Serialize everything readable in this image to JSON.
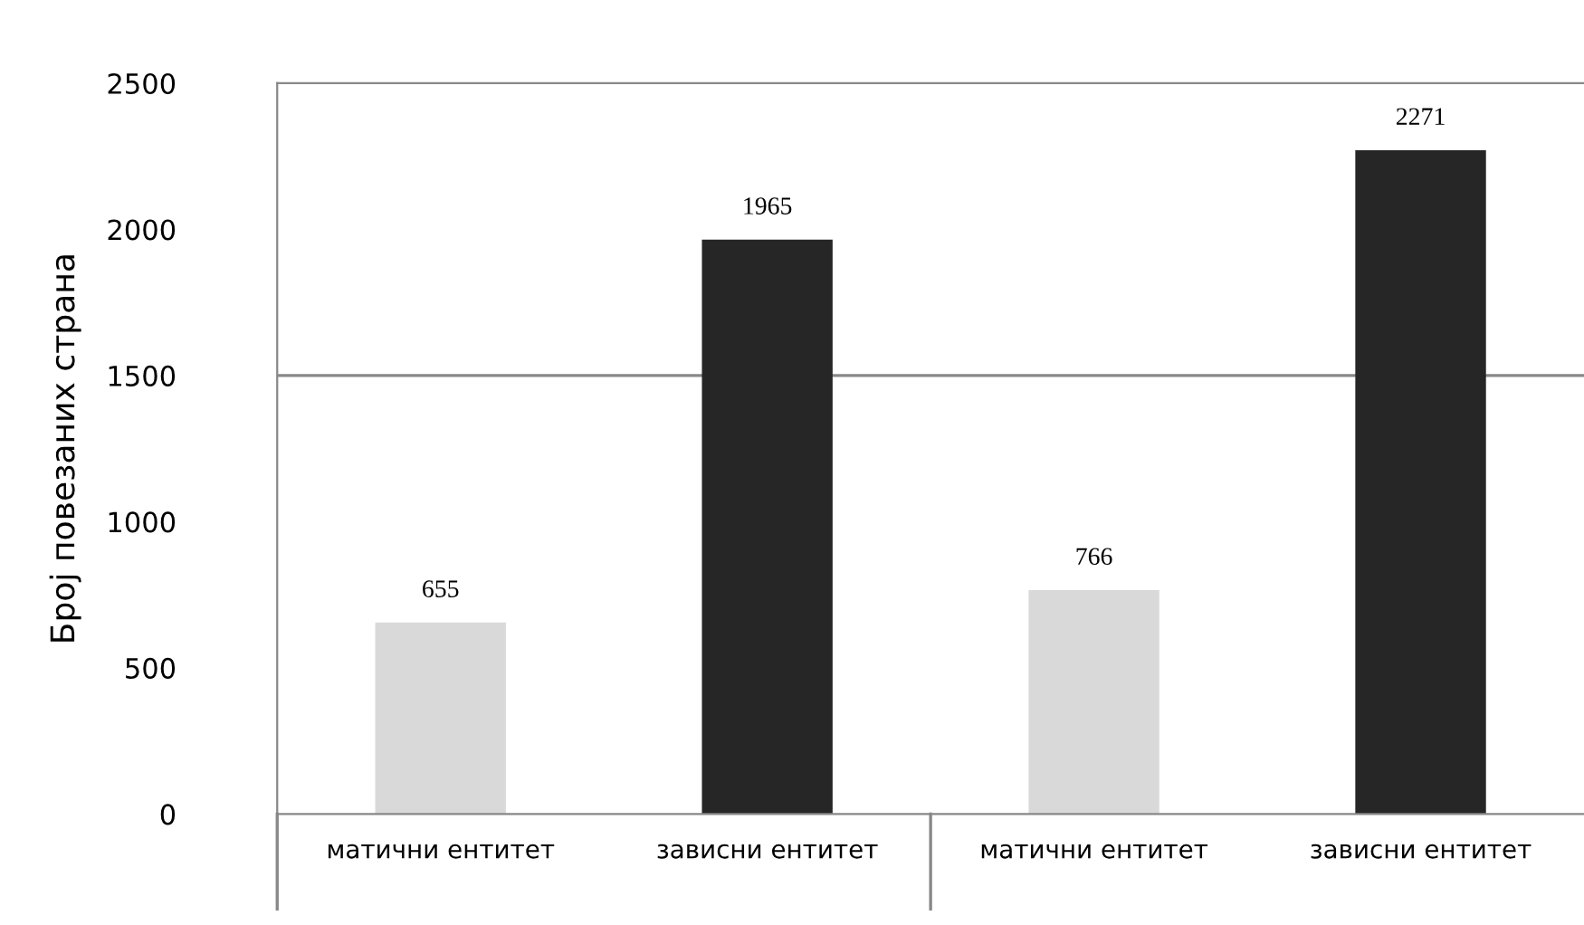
{
  "chart_data": {
    "type": "bar",
    "ylabel": "Број повезаних страна",
    "categories": [
      "матични ентитет",
      "зависни ентитет",
      "матични ентитет",
      "зависни ентитет"
    ],
    "values": [
      655,
      1965,
      766,
      2271
    ],
    "colors": [
      "#d9d9d9",
      "#262626",
      "#d9d9d9",
      "#262626"
    ],
    "ylim": [
      0,
      2500
    ],
    "yticks": [
      0,
      500,
      1000,
      1500,
      2000,
      2500
    ],
    "ref_lines": [
      {
        "axis": "y",
        "value": 1500,
        "color": "#888888"
      }
    ],
    "data_labels": true,
    "grid": false,
    "legend": false
  }
}
